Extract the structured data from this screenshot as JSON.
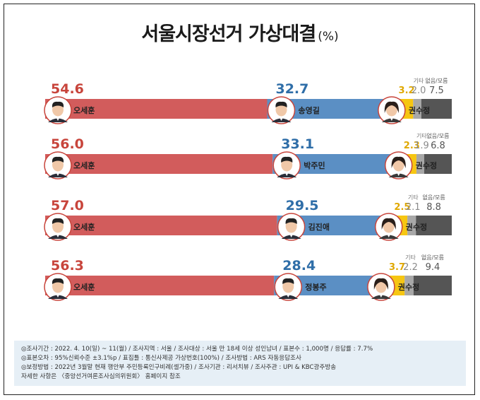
{
  "title": "서울시장선거 가상대결",
  "title_unit": "(%)",
  "chart_data": {
    "type": "bar",
    "stacked": true,
    "orientation": "horizontal",
    "series_labels": {
      "other": "기타",
      "none": "없음/모름"
    },
    "rows": [
      {
        "candidates": [
          {
            "name": "오세훈",
            "value": 54.6
          },
          {
            "name": "송영길",
            "value": 32.7
          },
          {
            "name": "권수정",
            "value": 3.2
          }
        ],
        "other": 2.0,
        "none": 7.5
      },
      {
        "candidates": [
          {
            "name": "오세훈",
            "value": 56.0
          },
          {
            "name": "박주민",
            "value": 33.1
          },
          {
            "name": "권수정",
            "value": 2.3
          }
        ],
        "other": 1.9,
        "none": 6.8
      },
      {
        "candidates": [
          {
            "name": "오세훈",
            "value": 57.0
          },
          {
            "name": "김진애",
            "value": 29.5
          },
          {
            "name": "권수정",
            "value": 2.5
          }
        ],
        "other": 2.1,
        "none": 8.8
      },
      {
        "candidates": [
          {
            "name": "오세훈",
            "value": 56.3
          },
          {
            "name": "정봉주",
            "value": 28.4
          },
          {
            "name": "권수정",
            "value": 3.7
          }
        ],
        "other": 2.2,
        "none": 9.4
      }
    ],
    "colors": {
      "first": "#d25c5c",
      "second": "#5b8fc4",
      "third": "#f6c612",
      "other": "#a8a8a8",
      "none": "#555555"
    },
    "label_colors": {
      "first": "#c8453c",
      "second": "#2f6ea8",
      "third": "#e0a800",
      "other": "#8a8a8a",
      "none": "#555555"
    }
  },
  "notes": [
    "◎조사기간 : 2022. 4. 10(일) ~ 11(월) / 조사지역 : 서울 / 조사대상 : 서울 만 18세 이상 성인남녀 / 표본수 : 1,000명 / 응답률 : 7.7%",
    "◎표본오차 : 95%신뢰수준 ±3.1%p / 표집틀 : 통신사제공 가상번호(100%) / 조사방법 : ARS 자동응답조사",
    "◎보정방법 : 2022년 3월말 현재 행안부 주민등록인구비례(셀가중) / 조사기관 : 리서치뷰 / 조사주관 : UPI & KBC광주방송",
    "자세한 사항은 〈중앙선거여론조사심의위원회〉 홈페이지 참조"
  ]
}
